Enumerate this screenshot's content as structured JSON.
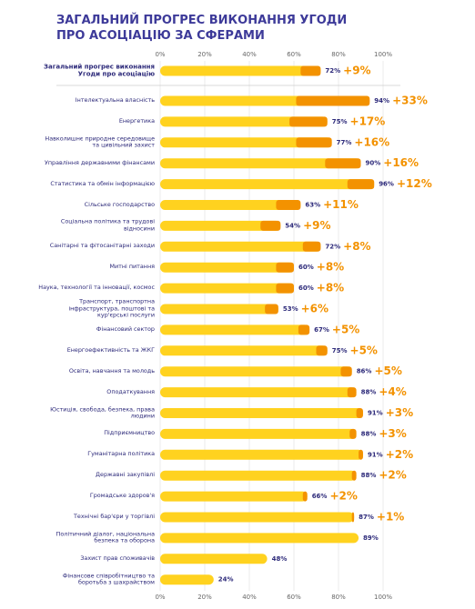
{
  "chart_data": {
    "type": "progress_bar",
    "title": "ЗАГАЛЬНИЙ ПРОГРЕС ВИКОНАННЯ УГОДИ ПРО АСОЦІАЦІЮ ЗА СФЕРАМИ",
    "categories": [
      "Загальний прогрес виконання Угоди про асоціацію",
      "Інтелектуальна власність",
      "Енергетика",
      "Навколишнє природне середовище та цивільний захист",
      "Управління державними фінансами",
      "Статистика та обмін інформацією",
      "Сільське господарство",
      "Соціальна політика та трудові відносини",
      "Санітарні та фітосанітарні заходи",
      "Митні питання",
      "Наука, технології та інновації, космос",
      "Транспорт, транспортна інфраструктура, поштові та кур'єрські послуги",
      "Фінансовий сектор",
      "Енергоефективність та ЖКГ",
      "Освіта, навчання та молодь",
      "Оподаткування",
      "Юстиція, свобода, безпека, права людини",
      "Підприємництво",
      "Гуманітарна політика",
      "Державні закупівлі",
      "Громадське здоров'я",
      "Технічні бар'єри у торгівлі",
      "Політичний діалог, національна безпека та оборона",
      "Захист прав споживачів",
      "Фінансове співробітництво та боротьба з шахрайством"
    ],
    "values": [
      72,
      94,
      75,
      77,
      90,
      96,
      63,
      54,
      72,
      60,
      60,
      53,
      67,
      75,
      86,
      88,
      91,
      88,
      91,
      88,
      66,
      87,
      89,
      48,
      24
    ],
    "value_labels": [
      "72%",
      "94%",
      "75%",
      "77%",
      "90%",
      "96%",
      "63%",
      "54%",
      "72%",
      "60%",
      "60%",
      "53%",
      "67%",
      "75%",
      "86%",
      "88%",
      "91%",
      "88%",
      "91%",
      "88%",
      "66%",
      "87%",
      "89%",
      "48%",
      "24%"
    ],
    "increase_values": [
      9,
      33,
      17,
      16,
      16,
      12,
      11,
      9,
      8,
      8,
      8,
      6,
      5,
      5,
      5,
      4,
      3,
      3,
      2,
      2,
      2,
      1,
      null,
      null,
      null
    ],
    "increase_labels": [
      "+9%",
      "+33%",
      "+17%",
      "+16%",
      "+16%",
      "+12%",
      "+11%",
      "+9%",
      "+8%",
      "+8%",
      "+8%",
      "+6%",
      "+5%",
      "+5%",
      "+5%",
      "+4%",
      "+3%",
      "+3%",
      "+2%",
      "+2%",
      "+2%",
      "+1%",
      null,
      null,
      null
    ],
    "colors": {
      "base": "#ffd21f",
      "increase": "#f39200"
    },
    "xlim": [
      0,
      100
    ],
    "xticks": [
      {
        "value": 0,
        "label": "0%"
      },
      {
        "value": 20,
        "label": "20%"
      },
      {
        "value": 40,
        "label": "40%"
      },
      {
        "value": 60,
        "label": "60%"
      },
      {
        "value": 80,
        "label": "80%"
      },
      {
        "value": 100,
        "label": "100%"
      }
    ],
    "grid": true
  }
}
